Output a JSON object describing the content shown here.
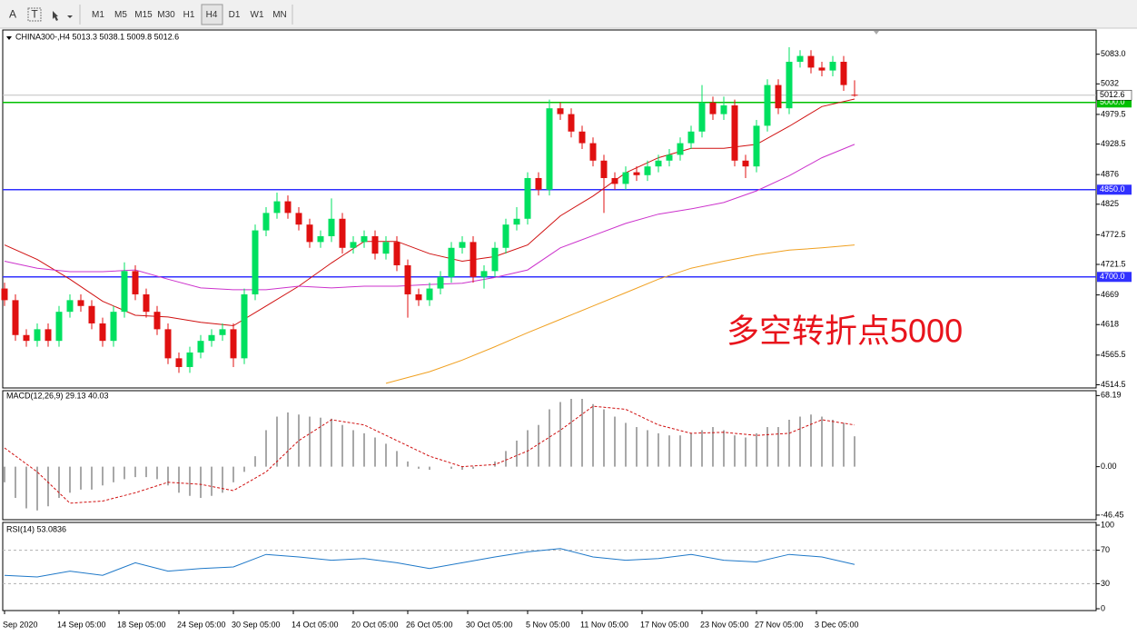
{
  "toolbar": {
    "tools": [
      "A",
      "T"
    ],
    "periods": [
      "M1",
      "M5",
      "M15",
      "M30",
      "H1",
      "H4",
      "D1",
      "W1",
      "MN"
    ],
    "active": "H4"
  },
  "chart_data": [
    {
      "type": "candlestick",
      "title": "CHINA300-,H4  5013.3 5038.1 5009.8 5012.6",
      "up_color": "#00e060",
      "down_color": "#e01010",
      "x": [
        0,
        2,
        4,
        6,
        8,
        10,
        12,
        14,
        16,
        18,
        20,
        22,
        24,
        26,
        28,
        30,
        32,
        34,
        36,
        38,
        40,
        42,
        44,
        46,
        48,
        50,
        52,
        54,
        56,
        58,
        60,
        62,
        64,
        66,
        68,
        70,
        72,
        74,
        76,
        78,
        80,
        82,
        84,
        86,
        88,
        90,
        92,
        94,
        96,
        98,
        100,
        102,
        104,
        106,
        108,
        110,
        112,
        114,
        116,
        118,
        120,
        122,
        124,
        126,
        128,
        130,
        132,
        134,
        136,
        138,
        140,
        142,
        144,
        146,
        148,
        150,
        152,
        154,
        156
      ],
      "open": [
        4680,
        4660,
        4600,
        4590,
        4610,
        4590,
        4640,
        4660,
        4650,
        4620,
        4590,
        4640,
        4710,
        4670,
        4640,
        4610,
        4560,
        4545,
        4570,
        4590,
        4600,
        4610,
        4560,
        4670,
        4780,
        4810,
        4830,
        4810,
        4790,
        4760,
        4770,
        4800,
        4750,
        4760,
        4770,
        4740,
        4760,
        4720,
        4670,
        4660,
        4680,
        4700,
        4750,
        4760,
        4700,
        4710,
        4750,
        4790,
        4800,
        4870,
        4850,
        4990,
        4980,
        4950,
        4930,
        4900,
        4870,
        4860,
        4880,
        4875,
        4890,
        4900,
        4910,
        4930,
        4950,
        5000,
        4980,
        4995,
        4900,
        4890,
        4960,
        5030,
        4990,
        5070,
        5080,
        5060,
        5055,
        5070,
        5013.3
      ],
      "high": [
        4690,
        4670,
        4610,
        4620,
        4620,
        4650,
        4670,
        4670,
        4660,
        4630,
        4650,
        4725,
        4720,
        4680,
        4650,
        4620,
        4570,
        4580,
        4600,
        4610,
        4620,
        4620,
        4680,
        4790,
        4820,
        4845,
        4840,
        4820,
        4800,
        4780,
        4835,
        4810,
        4770,
        4780,
        4780,
        4770,
        4770,
        4730,
        4680,
        4690,
        4710,
        4760,
        4770,
        4770,
        4720,
        4760,
        4800,
        4820,
        4880,
        4880,
        5005,
        5000,
        4990,
        4960,
        4940,
        4910,
        4880,
        4890,
        4890,
        4900,
        4910,
        4920,
        4940,
        4960,
        5030,
        5010,
        5010,
        5005,
        4910,
        4970,
        5040,
        5040,
        5095,
        5090,
        5090,
        5070,
        5080,
        5080,
        5038.1
      ],
      "low": [
        4650,
        4590,
        4580,
        4580,
        4580,
        4580,
        4630,
        4640,
        4610,
        4580,
        4580,
        4630,
        4660,
        4630,
        4600,
        4550,
        4535,
        4535,
        4560,
        4580,
        4590,
        4545,
        4550,
        4660,
        4770,
        4800,
        4800,
        4780,
        4750,
        4750,
        4760,
        4740,
        4740,
        4750,
        4730,
        4730,
        4710,
        4630,
        4650,
        4650,
        4670,
        4690,
        4740,
        4690,
        4680,
        4700,
        4740,
        4780,
        4790,
        4840,
        4840,
        4970,
        4940,
        4920,
        4890,
        4810,
        4850,
        4850,
        4865,
        4865,
        4880,
        4890,
        4900,
        4920,
        4940,
        4970,
        4970,
        4890,
        4870,
        4880,
        4950,
        4980,
        4980,
        5060,
        5050,
        5045,
        5045,
        5020,
        5009.8
      ],
      "close": [
        4660,
        4600,
        4590,
        4610,
        4590,
        4640,
        4660,
        4650,
        4620,
        4590,
        4640,
        4710,
        4670,
        4640,
        4610,
        4560,
        4545,
        4570,
        4590,
        4600,
        4610,
        4560,
        4670,
        4780,
        4810,
        4830,
        4810,
        4790,
        4760,
        4770,
        4800,
        4750,
        4760,
        4770,
        4740,
        4760,
        4720,
        4670,
        4660,
        4680,
        4700,
        4750,
        4760,
        4700,
        4710,
        4750,
        4790,
        4800,
        4870,
        4850,
        4990,
        4980,
        4950,
        4930,
        4900,
        4870,
        4860,
        4880,
        4875,
        4890,
        4900,
        4910,
        4930,
        4950,
        5000,
        4980,
        4995,
        4900,
        4890,
        4960,
        5030,
        4990,
        5070,
        5080,
        5060,
        5055,
        5070,
        5030,
        5012.6
      ],
      "lines": [
        {
          "color": "#d01010",
          "x": [
            0,
            6,
            12,
            18,
            24,
            30,
            36,
            42,
            48,
            54,
            60,
            66,
            72,
            78,
            84,
            90,
            96,
            102,
            108,
            114,
            120,
            126,
            132,
            138,
            144,
            150,
            156
          ],
          "values": [
            4755,
            4730,
            4696,
            4658,
            4634,
            4631,
            4622,
            4616,
            4650,
            4684,
            4724,
            4761,
            4761,
            4740,
            4727,
            4735,
            4755,
            4805,
            4839,
            4879,
            4905,
            4921,
            4921,
            4928,
            4959,
            4993,
            5006
          ]
        },
        {
          "color": "#cc33cc",
          "x": [
            0,
            6,
            12,
            18,
            24,
            30,
            36,
            42,
            48,
            54,
            60,
            66,
            72,
            78,
            84,
            90,
            96,
            102,
            108,
            114,
            120,
            126,
            132,
            138,
            144,
            150,
            156
          ],
          "values": [
            4727,
            4715,
            4709,
            4709,
            4712,
            4696,
            4681,
            4678,
            4678,
            4684,
            4681,
            4684,
            4684,
            4687,
            4689,
            4699,
            4712,
            4750,
            4771,
            4792,
            4808,
            4817,
            4828,
            4848,
            4874,
            4905,
            4928
          ]
        },
        {
          "color": "#f0a020",
          "x": [
            70,
            78,
            84,
            90,
            96,
            102,
            108,
            114,
            120,
            126,
            132,
            138,
            144,
            150,
            156
          ],
          "values": [
            4517,
            4537,
            4557,
            4580,
            4604,
            4627,
            4650,
            4673,
            4696,
            4715,
            4727,
            4738,
            4746,
            4750,
            4755
          ]
        }
      ],
      "hlines": [
        {
          "value": 5000,
          "label": "5000.0",
          "color": "#00c000"
        },
        {
          "value": 4850,
          "label": "4850.0",
          "color": "#3030ff"
        },
        {
          "value": 4700,
          "label": "4700.0",
          "color": "#3030ff"
        }
      ],
      "last_price": {
        "value": 5012.6,
        "label": "5012.6"
      },
      "annotation": {
        "text": "多空转折点5000",
        "color": "#e8141c"
      },
      "xlim": [
        0,
        157
      ],
      "ylim": [
        4509,
        5120
      ],
      "yticks": [
        {
          "value": 5083,
          "label": "5083.0"
        },
        5032,
        {
          "value": 4979.5,
          "label": "4979.5"
        },
        {
          "value": 4928.5,
          "label": "4928.5"
        },
        4876,
        4825,
        {
          "value": 4772.5,
          "label": "4772.5"
        },
        {
          "value": 4721.5,
          "label": "4721.5"
        },
        4669,
        4618,
        {
          "value": 4565.5,
          "label": "4565.5"
        },
        {
          "value": 4514.5,
          "label": "4514.5"
        }
      ],
      "xticks": [
        {
          "value": 0,
          "label": "Sep 2020"
        },
        {
          "value": 10,
          "label": "14 Sep 05:00"
        },
        {
          "value": 21,
          "label": "18 Sep 05:00"
        },
        {
          "value": 32,
          "label": "24 Sep 05:00"
        },
        {
          "value": 42,
          "label": "30 Sep 05:00"
        },
        {
          "value": 53,
          "label": "14 Oct 05:00"
        },
        {
          "value": 64,
          "label": "20 Oct 05:00"
        },
        {
          "value": 74,
          "label": "26 Oct 05:00"
        },
        {
          "value": 85,
          "label": "30 Oct 05:00"
        },
        {
          "value": 96,
          "label": "5 Nov 05:00"
        },
        {
          "value": 106,
          "label": "11 Nov 05:00"
        },
        {
          "value": 117,
          "label": "17 Nov 05:00"
        },
        {
          "value": 128,
          "label": "23 Nov 05:00"
        },
        {
          "value": 138,
          "label": "27 Nov 05:00"
        },
        {
          "value": 149,
          "label": "3 Dec 05:00"
        }
      ]
    },
    {
      "type": "macd",
      "title": "MACD(12,26,9) 29.13 40.03",
      "color": "#a8a8a8",
      "signal_color": "#d01010",
      "x": [
        0,
        2,
        4,
        6,
        8,
        10,
        12,
        14,
        16,
        18,
        20,
        22,
        24,
        26,
        28,
        30,
        32,
        34,
        36,
        38,
        40,
        42,
        44,
        46,
        48,
        50,
        52,
        54,
        56,
        58,
        60,
        62,
        64,
        66,
        68,
        70,
        72,
        74,
        76,
        78,
        80,
        82,
        84,
        86,
        88,
        90,
        92,
        94,
        96,
        98,
        100,
        102,
        104,
        106,
        108,
        110,
        112,
        114,
        116,
        118,
        120,
        122,
        124,
        126,
        128,
        130,
        132,
        134,
        136,
        138,
        140,
        142,
        144,
        146,
        148,
        150,
        152,
        154,
        156
      ],
      "values": [
        -15,
        -30,
        -40,
        -42,
        -38,
        -30,
        -25,
        -22,
        -22,
        -18,
        -15,
        -12,
        -10,
        -10,
        -12,
        -18,
        -25,
        -28,
        -30,
        -28,
        -25,
        -15,
        -5,
        10,
        35,
        48,
        52,
        50,
        48,
        47,
        46,
        40,
        35,
        32,
        28,
        22,
        15,
        5,
        -2,
        -3,
        0,
        -2,
        -3,
        -2,
        0,
        5,
        15,
        25,
        35,
        40,
        55,
        62,
        65,
        65,
        60,
        55,
        48,
        42,
        38,
        35,
        32,
        30,
        30,
        32,
        35,
        38,
        35,
        30,
        28,
        32,
        38,
        38,
        45,
        48,
        50,
        48,
        45,
        42,
        29.13
      ],
      "signal": {
        "x": [
          0,
          6,
          12,
          18,
          24,
          30,
          36,
          42,
          48,
          54,
          60,
          66,
          72,
          78,
          84,
          90,
          96,
          102,
          108,
          114,
          120,
          126,
          132,
          138,
          144,
          150,
          156
        ],
        "values": [
          18,
          -5,
          -35,
          -33,
          -25,
          -15,
          -17,
          -23,
          -5,
          25,
          45,
          40,
          25,
          10,
          0,
          2,
          15,
          35,
          58,
          55,
          40,
          32,
          33,
          30,
          32,
          45,
          40.03
        ]
      },
      "xlim": [
        0,
        157
      ],
      "ylim": [
        -50,
        72
      ],
      "yticks": [
        68.19,
        {
          "value": 0,
          "label": "0.00"
        },
        -46.45
      ]
    },
    {
      "type": "line",
      "title": "RSI(14) 53.0836",
      "color": "#1e78c8",
      "x": [
        0,
        6,
        12,
        18,
        24,
        30,
        36,
        42,
        48,
        54,
        60,
        66,
        72,
        78,
        84,
        90,
        96,
        102,
        108,
        114,
        120,
        126,
        132,
        138,
        144,
        150,
        156
      ],
      "values": [
        40,
        38,
        45,
        40,
        55,
        45,
        48,
        50,
        65,
        62,
        58,
        60,
        55,
        48,
        55,
        62,
        68,
        72,
        62,
        58,
        60,
        65,
        58,
        56,
        65,
        62,
        53.0836
      ],
      "xlim": [
        0,
        157
      ],
      "ylim": [
        0,
        100
      ],
      "yticks": [
        100,
        70,
        30,
        0
      ]
    }
  ]
}
